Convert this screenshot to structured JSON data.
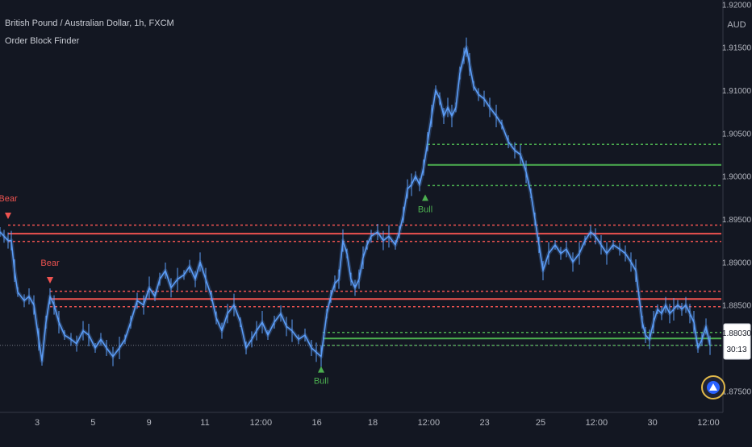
{
  "header": {
    "symbol_title": "British Pound / Australian Dollar, 1h, FXCM",
    "indicator_name": "Order Block Finder"
  },
  "price_axis": {
    "currency": "AUD",
    "ticks": [
      "1.92000",
      "1.91500",
      "1.91000",
      "1.90500",
      "1.90000",
      "1.89500",
      "1.89000",
      "1.88500",
      "1.88030",
      "1.87500"
    ],
    "last_price": "1.88030",
    "countdown": "30:13"
  },
  "time_axis": {
    "labels": [
      "3",
      "5",
      "9",
      "11",
      "12:00",
      "16",
      "18",
      "12:00",
      "23",
      "25",
      "12:00",
      "30",
      "12:00"
    ]
  },
  "chart_data": {
    "type": "line",
    "title": "British Pound / Australian Dollar, 1h, FXCM",
    "ylim": [
      1.8725,
      1.9205
    ],
    "series": [
      {
        "type": "line",
        "points": [
          [
            0,
            1.8935
          ],
          [
            5,
            1.893
          ],
          [
            10,
            1.8925
          ],
          [
            14,
            1.8925
          ],
          [
            18,
            1.889
          ],
          [
            22,
            1.8865
          ],
          [
            30,
            1.8855
          ],
          [
            36,
            1.886
          ],
          [
            42,
            1.885
          ],
          [
            48,
            1.881
          ],
          [
            52,
            1.8785
          ],
          [
            57,
            1.883
          ],
          [
            62,
            1.886
          ],
          [
            67,
            1.885
          ],
          [
            73,
            1.883
          ],
          [
            80,
            1.8815
          ],
          [
            88,
            1.881
          ],
          [
            95,
            1.8805
          ],
          [
            103,
            1.882
          ],
          [
            110,
            1.8815
          ],
          [
            118,
            1.88
          ],
          [
            125,
            1.881
          ],
          [
            132,
            1.88
          ],
          [
            140,
            1.879
          ],
          [
            148,
            1.88
          ],
          [
            155,
            1.881
          ],
          [
            162,
            1.883
          ],
          [
            170,
            1.8855
          ],
          [
            178,
            1.885
          ],
          [
            185,
            1.887
          ],
          [
            192,
            1.886
          ],
          [
            198,
            1.888
          ],
          [
            205,
            1.889
          ],
          [
            212,
            1.887
          ],
          [
            220,
            1.888
          ],
          [
            228,
            1.8885
          ],
          [
            235,
            1.8895
          ],
          [
            242,
            1.888
          ],
          [
            248,
            1.89
          ],
          [
            255,
            1.888
          ],
          [
            262,
            1.886
          ],
          [
            268,
            1.8835
          ],
          [
            275,
            1.882
          ],
          [
            282,
            1.884
          ],
          [
            290,
            1.885
          ],
          [
            298,
            1.883
          ],
          [
            305,
            1.88
          ],
          [
            312,
            1.881
          ],
          [
            318,
            1.882
          ],
          [
            325,
            1.883
          ],
          [
            332,
            1.8815
          ],
          [
            340,
            1.883
          ],
          [
            348,
            1.884
          ],
          [
            355,
            1.8825
          ],
          [
            362,
            1.882
          ],
          [
            370,
            1.881
          ],
          [
            378,
            1.8815
          ],
          [
            386,
            1.88
          ],
          [
            392,
            1.8795
          ],
          [
            398,
            1.879
          ],
          [
            405,
            1.884
          ],
          [
            410,
            1.886
          ],
          [
            415,
            1.8875
          ],
          [
            420,
            1.888
          ],
          [
            425,
            1.8925
          ],
          [
            430,
            1.891
          ],
          [
            435,
            1.888
          ],
          [
            440,
            1.887
          ],
          [
            445,
            1.888
          ],
          [
            450,
            1.8905
          ],
          [
            455,
            1.892
          ],
          [
            460,
            1.893
          ],
          [
            468,
            1.8935
          ],
          [
            475,
            1.8925
          ],
          [
            482,
            1.893
          ],
          [
            490,
            1.892
          ],
          [
            495,
            1.8935
          ],
          [
            500,
            1.8955
          ],
          [
            505,
            1.8985
          ],
          [
            510,
            1.899
          ],
          [
            515,
            1.9
          ],
          [
            520,
            1.899
          ],
          [
            525,
            1.901
          ],
          [
            530,
            1.904
          ],
          [
            535,
            1.907
          ],
          [
            540,
            1.91
          ],
          [
            545,
            1.909
          ],
          [
            550,
            1.907
          ],
          [
            555,
            1.908
          ],
          [
            560,
            1.907
          ],
          [
            565,
            1.908
          ],
          [
            570,
            1.912
          ],
          [
            575,
            1.914
          ],
          [
            578,
            1.915
          ],
          [
            582,
            1.913
          ],
          [
            587,
            1.9105
          ],
          [
            593,
            1.9095
          ],
          [
            600,
            1.909
          ],
          [
            607,
            1.908
          ],
          [
            615,
            1.907
          ],
          [
            622,
            1.906
          ],
          [
            630,
            1.904
          ],
          [
            638,
            1.903
          ],
          [
            645,
            1.9025
          ],
          [
            652,
            1.9005
          ],
          [
            658,
            1.898
          ],
          [
            663,
            1.895
          ],
          [
            668,
            1.892
          ],
          [
            673,
            1.889
          ],
          [
            680,
            1.891
          ],
          [
            688,
            1.892
          ],
          [
            695,
            1.891
          ],
          [
            702,
            1.8915
          ],
          [
            710,
            1.89
          ],
          [
            718,
            1.891
          ],
          [
            725,
            1.8925
          ],
          [
            732,
            1.8935
          ],
          [
            738,
            1.893
          ],
          [
            745,
            1.892
          ],
          [
            752,
            1.891
          ],
          [
            760,
            1.892
          ],
          [
            768,
            1.8915
          ],
          [
            775,
            1.891
          ],
          [
            782,
            1.89
          ],
          [
            788,
            1.889
          ],
          [
            792,
            1.886
          ],
          [
            796,
            1.883
          ],
          [
            800,
            1.8815
          ],
          [
            805,
            1.881
          ],
          [
            810,
            1.883
          ],
          [
            815,
            1.8845
          ],
          [
            820,
            1.884
          ],
          [
            825,
            1.885
          ],
          [
            830,
            1.884
          ],
          [
            835,
            1.8845
          ],
          [
            840,
            1.885
          ],
          [
            845,
            1.8845
          ],
          [
            850,
            1.885
          ],
          [
            855,
            1.884
          ],
          [
            860,
            1.883
          ],
          [
            865,
            1.88
          ],
          [
            870,
            1.881
          ],
          [
            875,
            1.8825
          ],
          [
            880,
            1.8803
          ]
        ]
      }
    ],
    "order_blocks": [
      {
        "kind": "bear",
        "x_start": 10,
        "high": 1.8943,
        "mid": 1.8933,
        "low": 1.8924
      },
      {
        "kind": "bear",
        "x_start": 62,
        "high": 1.8866,
        "mid": 1.8857,
        "low": 1.8848
      },
      {
        "kind": "bull",
        "x_start": 400,
        "high": 1.8818,
        "mid": 1.8811,
        "low": 1.8803
      },
      {
        "kind": "bull",
        "x_start": 530,
        "high": 1.9037,
        "mid": 1.9013,
        "low": 1.8989
      }
    ],
    "signals": [
      {
        "label": "Bear",
        "kind": "bear",
        "x": 10,
        "price": 1.8935
      },
      {
        "label": "Bear",
        "kind": "bear",
        "x": 62,
        "price": 1.886
      },
      {
        "label": "Bull",
        "kind": "bull",
        "x": 398,
        "price": 1.879
      },
      {
        "label": "Bull",
        "kind": "bull",
        "x": 527,
        "price": 1.899
      }
    ],
    "colors": {
      "price_line": "#5b9cf6",
      "bear": "#ef5350",
      "bull": "#4caf50",
      "background": "#131722"
    }
  }
}
